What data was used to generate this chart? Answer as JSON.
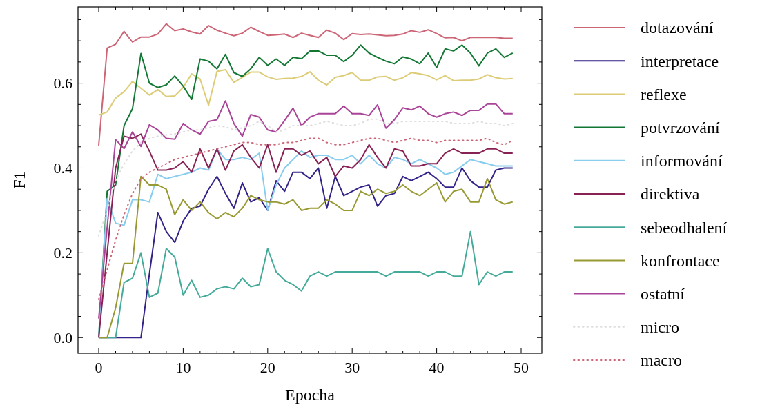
{
  "chart_data": {
    "type": "line",
    "xlabel": "Epocha",
    "ylabel": "F1",
    "x": [
      0,
      1,
      2,
      3,
      4,
      5,
      6,
      7,
      8,
      9,
      10,
      11,
      12,
      13,
      14,
      15,
      16,
      17,
      18,
      19,
      20,
      21,
      22,
      23,
      24,
      25,
      26,
      27,
      28,
      29,
      30,
      31,
      32,
      33,
      34,
      35,
      36,
      37,
      38,
      39,
      40,
      41,
      42,
      43,
      44,
      45,
      46,
      47,
      48,
      49
    ],
    "xlim": [
      -2.45,
      52.45
    ],
    "ylim": [
      -0.037,
      0.78
    ],
    "xticks": [
      0,
      {
        "value": 2,
        "label": null
      },
      {
        "value": 4,
        "label": null
      },
      {
        "value": 6,
        "label": null
      },
      {
        "value": 8,
        "label": null
      },
      10,
      {
        "value": 12,
        "label": null
      },
      {
        "value": 14,
        "label": null
      },
      {
        "value": 16,
        "label": null
      },
      {
        "value": 18,
        "label": null
      },
      20,
      {
        "value": 22,
        "label": null
      },
      {
        "value": 24,
        "label": null
      },
      {
        "value": 26,
        "label": null
      },
      {
        "value": 28,
        "label": null
      },
      30,
      {
        "value": 32,
        "label": null
      },
      {
        "value": 34,
        "label": null
      },
      {
        "value": 36,
        "label": null
      },
      {
        "value": 38,
        "label": null
      },
      40,
      {
        "value": 42,
        "label": null
      },
      {
        "value": 44,
        "label": null
      },
      {
        "value": 46,
        "label": null
      },
      {
        "value": 48,
        "label": null
      },
      50
    ],
    "yticks": [
      {
        "value": 0,
        "label": "0.0"
      },
      {
        "value": 0.05,
        "label": null
      },
      {
        "value": 0.1,
        "label": null
      },
      {
        "value": 0.15,
        "label": null
      },
      0.2,
      {
        "value": 0.25,
        "label": null
      },
      {
        "value": 0.3,
        "label": null
      },
      {
        "value": 0.35,
        "label": null
      },
      0.4,
      {
        "value": 0.45,
        "label": null
      },
      {
        "value": 0.5,
        "label": null
      },
      {
        "value": 0.55,
        "label": null
      },
      0.6,
      {
        "value": 0.65,
        "label": null
      },
      {
        "value": 0.7,
        "label": null
      },
      {
        "value": 0.75,
        "label": null
      }
    ],
    "legend": "right",
    "grid": false,
    "marker": "none",
    "series": [
      {
        "name": "dotazování",
        "color": "#cc6677",
        "line_style": "solid",
        "values": [
          0.453,
          0.683,
          0.692,
          0.722,
          0.697,
          0.709,
          0.709,
          0.716,
          0.74,
          0.724,
          0.728,
          0.721,
          0.716,
          0.736,
          0.725,
          0.718,
          0.712,
          0.718,
          0.732,
          0.722,
          0.713,
          0.714,
          0.716,
          0.708,
          0.718,
          0.713,
          0.708,
          0.725,
          0.718,
          0.703,
          0.717,
          0.715,
          0.716,
          0.714,
          0.712,
          0.713,
          0.716,
          0.724,
          0.72,
          0.726,
          0.717,
          0.707,
          0.708,
          0.7,
          0.708,
          0.708,
          0.708,
          0.708,
          0.706,
          0.706
        ]
      },
      {
        "name": "interpretace",
        "color": "#332288",
        "line_style": "solid",
        "values": [
          0,
          0,
          0,
          0,
          0,
          0,
          0.15,
          0.295,
          0.25,
          0.225,
          0.275,
          0.305,
          0.31,
          0.35,
          0.38,
          0.34,
          0.305,
          0.365,
          0.32,
          0.33,
          0.3,
          0.37,
          0.345,
          0.39,
          0.39,
          0.375,
          0.4,
          0.305,
          0.38,
          0.335,
          0.345,
          0.355,
          0.36,
          0.31,
          0.335,
          0.34,
          0.38,
          0.37,
          0.38,
          0.39,
          0.375,
          0.355,
          0.355,
          0.4,
          0.37,
          0.355,
          0.355,
          0.395,
          0.4,
          0.4
        ]
      },
      {
        "name": "reflexe",
        "color": "#ddcc77",
        "line_style": "solid",
        "values": [
          0.525,
          0.532,
          0.565,
          0.58,
          0.604,
          0.588,
          0.572,
          0.585,
          0.569,
          0.57,
          0.59,
          0.622,
          0.61,
          0.548,
          0.628,
          0.632,
          0.602,
          0.614,
          0.626,
          0.626,
          0.615,
          0.609,
          0.611,
          0.612,
          0.616,
          0.627,
          0.607,
          0.596,
          0.614,
          0.618,
          0.625,
          0.607,
          0.607,
          0.615,
          0.616,
          0.607,
          0.613,
          0.625,
          0.622,
          0.618,
          0.608,
          0.618,
          0.606,
          0.607,
          0.607,
          0.61,
          0.62,
          0.613,
          0.61,
          0.611
        ]
      },
      {
        "name": "potvrzování",
        "color": "#117733",
        "line_style": "solid",
        "values": [
          0,
          0.345,
          0.36,
          0.5,
          0.54,
          0.67,
          0.6,
          0.59,
          0.596,
          0.617,
          0.593,
          0.562,
          0.657,
          0.652,
          0.634,
          0.668,
          0.625,
          0.616,
          0.634,
          0.661,
          0.642,
          0.657,
          0.642,
          0.661,
          0.658,
          0.676,
          0.676,
          0.666,
          0.666,
          0.651,
          0.666,
          0.69,
          0.671,
          0.661,
          0.652,
          0.646,
          0.662,
          0.657,
          0.646,
          0.671,
          0.637,
          0.681,
          0.676,
          0.69,
          0.671,
          0.641,
          0.671,
          0.681,
          0.661,
          0.671
        ]
      },
      {
        "name": "informování",
        "color": "#88ccee",
        "line_style": "solid",
        "values": [
          0,
          0.328,
          0.27,
          0.265,
          0.325,
          0.325,
          0.32,
          0.385,
          0.375,
          0.38,
          0.385,
          0.39,
          0.4,
          0.395,
          0.445,
          0.42,
          0.42,
          0.425,
          0.42,
          0.435,
          0.3,
          0.36,
          0.4,
          0.42,
          0.44,
          0.425,
          0.43,
          0.43,
          0.42,
          0.42,
          0.43,
          0.41,
          0.43,
          0.41,
          0.4,
          0.425,
          0.42,
          0.41,
          0.42,
          0.41,
          0.4,
          0.385,
          0.39,
          0.405,
          0.42,
          0.415,
          0.41,
          0.405,
          0.405,
          0.405
        ]
      },
      {
        "name": "direktiva",
        "color": "#882255",
        "line_style": "solid",
        "values": [
          0,
          0.2,
          0.4,
          0.475,
          0.47,
          0.48,
          0.44,
          0.395,
          0.395,
          0.4,
          0.415,
          0.39,
          0.445,
          0.4,
          0.445,
          0.395,
          0.44,
          0.455,
          0.425,
          0.4,
          0.455,
          0.39,
          0.445,
          0.445,
          0.43,
          0.44,
          0.41,
          0.425,
          0.38,
          0.405,
          0.4,
          0.42,
          0.455,
          0.425,
          0.4,
          0.445,
          0.44,
          0.405,
          0.405,
          0.41,
          0.41,
          0.435,
          0.445,
          0.435,
          0.435,
          0.435,
          0.445,
          0.445,
          0.435,
          0.435
        ]
      },
      {
        "name": "sebeodhalení",
        "color": "#44aa99",
        "line_style": "solid",
        "values": [
          0,
          0,
          0,
          0.13,
          0.14,
          0.2,
          0.095,
          0.105,
          0.21,
          0.19,
          0.1,
          0.135,
          0.095,
          0.1,
          0.115,
          0.12,
          0.115,
          0.14,
          0.12,
          0.125,
          0.21,
          0.155,
          0.135,
          0.125,
          0.11,
          0.145,
          0.155,
          0.145,
          0.155,
          0.155,
          0.155,
          0.155,
          0.155,
          0.155,
          0.145,
          0.155,
          0.155,
          0.155,
          0.155,
          0.145,
          0.155,
          0.155,
          0.145,
          0.145,
          0.25,
          0.125,
          0.155,
          0.145,
          0.155,
          0.155
        ]
      },
      {
        "name": "konfrontace",
        "color": "#999933",
        "line_style": "solid",
        "values": [
          0,
          0,
          0.07,
          0.175,
          0.175,
          0.38,
          0.36,
          0.36,
          0.35,
          0.29,
          0.325,
          0.3,
          0.32,
          0.295,
          0.28,
          0.295,
          0.285,
          0.305,
          0.335,
          0.325,
          0.32,
          0.32,
          0.315,
          0.325,
          0.3,
          0.305,
          0.305,
          0.325,
          0.315,
          0.3,
          0.3,
          0.345,
          0.335,
          0.35,
          0.34,
          0.345,
          0.36,
          0.345,
          0.335,
          0.35,
          0.365,
          0.32,
          0.345,
          0.35,
          0.32,
          0.32,
          0.375,
          0.325,
          0.315,
          0.32
        ]
      },
      {
        "name": "ostatní",
        "color": "#aa4499",
        "line_style": "solid",
        "values": [
          0.045,
          0.26,
          0.467,
          0.446,
          0.485,
          0.451,
          0.502,
          0.49,
          0.47,
          0.468,
          0.505,
          0.49,
          0.48,
          0.51,
          0.514,
          0.558,
          0.505,
          0.475,
          0.526,
          0.52,
          0.49,
          0.485,
          0.512,
          0.541,
          0.5,
          0.52,
          0.528,
          0.528,
          0.528,
          0.546,
          0.528,
          0.528,
          0.524,
          0.549,
          0.494,
          0.514,
          0.542,
          0.537,
          0.546,
          0.528,
          0.52,
          0.528,
          0.532,
          0.524,
          0.536,
          0.536,
          0.551,
          0.551,
          0.528,
          0.528
        ]
      },
      {
        "name": "micro",
        "color": "#dddddd",
        "line_style": "dotted",
        "values": [
          0.24,
          0.3,
          0.37,
          0.41,
          0.44,
          0.46,
          0.47,
          0.475,
          0.478,
          0.48,
          0.485,
          0.49,
          0.49,
          0.495,
          0.5,
          0.497,
          0.49,
          0.495,
          0.5,
          0.51,
          0.5,
          0.485,
          0.49,
          0.5,
          0.5,
          0.5,
          0.505,
          0.51,
          0.505,
          0.5,
          0.5,
          0.505,
          0.515,
          0.515,
          0.505,
          0.505,
          0.51,
          0.51,
          0.51,
          0.51,
          0.51,
          0.51,
          0.505,
          0.505,
          0.505,
          0.51,
          0.505,
          0.505,
          0.5,
          0.505
        ]
      },
      {
        "name": "macro",
        "color": "#cc6677",
        "line_style": "dotted",
        "values": [
          0.09,
          0.16,
          0.23,
          0.29,
          0.34,
          0.375,
          0.39,
          0.4,
          0.41,
          0.42,
          0.425,
          0.43,
          0.435,
          0.44,
          0.445,
          0.45,
          0.455,
          0.46,
          0.46,
          0.455,
          0.455,
          0.455,
          0.46,
          0.46,
          0.465,
          0.47,
          0.47,
          0.46,
          0.455,
          0.455,
          0.46,
          0.465,
          0.47,
          0.47,
          0.465,
          0.46,
          0.465,
          0.47,
          0.465,
          0.465,
          0.46,
          0.465,
          0.465,
          0.465,
          0.465,
          0.465,
          0.47,
          0.46,
          0.455,
          0.465
        ]
      }
    ]
  }
}
